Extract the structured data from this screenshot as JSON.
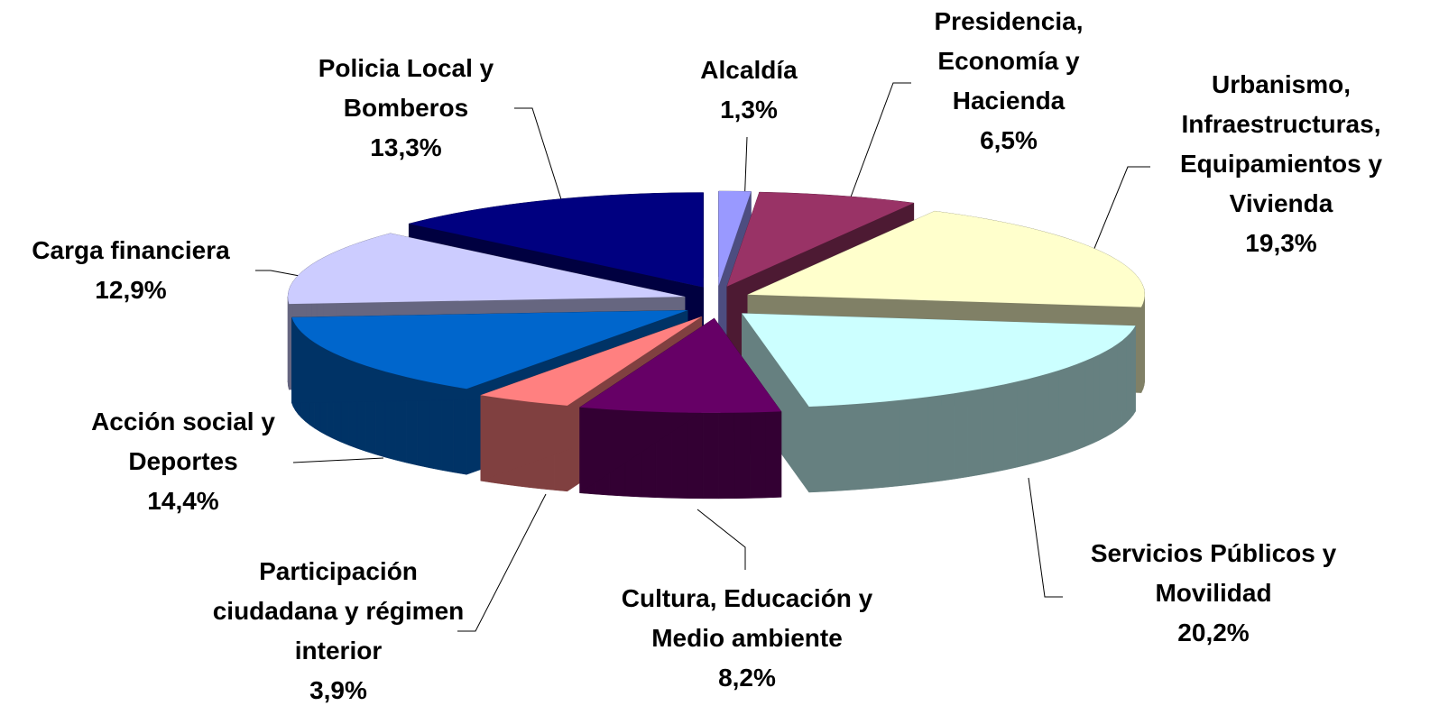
{
  "chart_data": {
    "type": "pie3d",
    "categories": [
      "Alcaldía",
      "Presidencia, Economía y Hacienda",
      "Urbanismo, Infraestructuras, Equipamientos y Vivienda",
      "Servicios Públicos y Movilidad",
      "Cultura, Educación y Medio ambiente",
      "Participación ciudadana y régimen interior",
      "Acción social y Deportes",
      "Carga financiera",
      "Policia Local y Bomberos"
    ],
    "values": [
      1.3,
      6.5,
      19.3,
      20.2,
      8.2,
      3.9,
      14.4,
      12.9,
      13.3
    ],
    "value_labels": [
      "1,3%",
      "6,5%",
      "19,3%",
      "20,2%",
      "8,2%",
      "3,9%",
      "14,4%",
      "12,9%",
      "13,3%"
    ],
    "colors": [
      "#9999ff",
      "#993366",
      "#ffffcc",
      "#ccffff",
      "#660066",
      "#ff8080",
      "#0066cc",
      "#ccccff",
      "#000080"
    ]
  }
}
